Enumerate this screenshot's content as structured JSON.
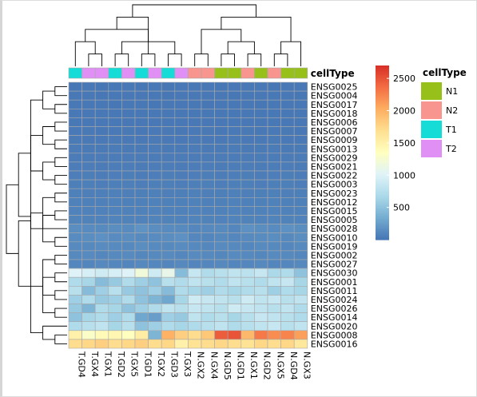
{
  "chart_data": {
    "type": "heatmap",
    "title": "",
    "annotation_title": "cellType",
    "columns": [
      "T.GD4",
      "T.GX4",
      "T.GX1",
      "T.GD2",
      "T.GX5",
      "T.GD1",
      "T.GX2",
      "T.GD3",
      "T.GX3",
      "N.GX2",
      "N.GX4",
      "N.GD5",
      "N.GD1",
      "N.GX1",
      "N.GD2",
      "N.GX5",
      "N.GD4",
      "N.GX3"
    ],
    "column_groups": [
      "T1",
      "T2",
      "T2",
      "T1",
      "T2",
      "T1",
      "T2",
      "T1",
      "T2",
      "N2",
      "N2",
      "N1",
      "N1",
      "N2",
      "N1",
      "N2",
      "N1",
      "N1"
    ],
    "rows": [
      "ENSG0025",
      "ENSG0004",
      "ENSG0017",
      "ENSG0018",
      "ENSG0006",
      "ENSG0007",
      "ENSG0009",
      "ENSG0013",
      "ENSG0029",
      "ENSG0021",
      "ENSG0022",
      "ENSG0003",
      "ENSG0023",
      "ENSG0012",
      "ENSG0015",
      "ENSG0005",
      "ENSG0028",
      "ENSG0010",
      "ENSG0019",
      "ENSG0002",
      "ENSG0027",
      "ENSG0030",
      "ENSG0001",
      "ENSG0011",
      "ENSG0024",
      "ENSG0026",
      "ENSG0014",
      "ENSG0020",
      "ENSG0008",
      "ENSG0016"
    ],
    "values": [
      [
        15,
        20,
        12,
        18,
        25,
        15,
        20,
        12,
        18,
        22,
        20,
        15,
        18,
        20,
        25,
        15,
        18,
        20
      ],
      [
        18,
        22,
        15,
        20,
        18,
        20,
        22,
        15,
        20,
        18,
        22,
        20,
        15,
        22,
        20,
        18,
        20,
        15
      ],
      [
        20,
        18,
        22,
        15,
        20,
        18,
        15,
        22,
        18,
        20,
        15,
        22,
        20,
        18,
        15,
        22,
        18,
        20
      ],
      [
        22,
        25,
        20,
        22,
        18,
        22,
        25,
        20,
        22,
        25,
        20,
        18,
        22,
        25,
        20,
        18,
        22,
        25
      ],
      [
        25,
        22,
        18,
        25,
        22,
        20,
        18,
        25,
        22,
        20,
        25,
        22,
        18,
        20,
        22,
        25,
        20,
        22
      ],
      [
        30,
        28,
        25,
        30,
        28,
        25,
        30,
        28,
        25,
        30,
        28,
        25,
        30,
        28,
        25,
        30,
        28,
        25
      ],
      [
        35,
        32,
        30,
        35,
        32,
        30,
        35,
        32,
        30,
        35,
        32,
        30,
        35,
        32,
        30,
        35,
        32,
        30
      ],
      [
        40,
        38,
        35,
        40,
        38,
        35,
        40,
        38,
        35,
        40,
        38,
        35,
        40,
        38,
        35,
        40,
        38,
        35
      ],
      [
        45,
        42,
        40,
        45,
        42,
        40,
        45,
        42,
        40,
        45,
        42,
        40,
        45,
        42,
        40,
        45,
        42,
        40
      ],
      [
        50,
        48,
        45,
        50,
        48,
        45,
        50,
        48,
        45,
        50,
        48,
        45,
        50,
        48,
        45,
        50,
        48,
        45
      ],
      [
        55,
        52,
        50,
        55,
        52,
        50,
        55,
        52,
        50,
        55,
        52,
        50,
        55,
        52,
        50,
        55,
        52,
        50
      ],
      [
        60,
        58,
        55,
        60,
        58,
        55,
        60,
        58,
        55,
        60,
        58,
        55,
        60,
        58,
        55,
        60,
        58,
        55
      ],
      [
        65,
        62,
        60,
        65,
        62,
        60,
        65,
        62,
        60,
        65,
        62,
        60,
        65,
        62,
        60,
        65,
        62,
        60
      ],
      [
        70,
        68,
        65,
        70,
        68,
        65,
        70,
        68,
        65,
        70,
        68,
        65,
        70,
        68,
        65,
        70,
        68,
        65
      ],
      [
        80,
        75,
        70,
        80,
        75,
        70,
        80,
        75,
        70,
        80,
        75,
        70,
        80,
        75,
        70,
        80,
        75,
        70
      ],
      [
        90,
        85,
        80,
        90,
        85,
        80,
        90,
        85,
        80,
        90,
        85,
        80,
        90,
        85,
        80,
        90,
        85,
        80
      ],
      [
        150,
        140,
        130,
        150,
        140,
        180,
        150,
        140,
        130,
        110,
        120,
        130,
        110,
        170,
        150,
        140,
        170,
        150
      ],
      [
        140,
        150,
        170,
        140,
        150,
        130,
        140,
        150,
        170,
        110,
        100,
        120,
        110,
        130,
        140,
        150,
        120,
        150
      ],
      [
        130,
        120,
        140,
        130,
        120,
        150,
        130,
        120,
        140,
        120,
        110,
        130,
        120,
        110,
        130,
        120,
        110,
        130
      ],
      [
        120,
        130,
        110,
        120,
        130,
        110,
        120,
        130,
        110,
        130,
        120,
        110,
        130,
        120,
        110,
        130,
        120,
        110
      ],
      [
        110,
        100,
        120,
        110,
        100,
        120,
        110,
        100,
        120,
        100,
        110,
        120,
        100,
        110,
        120,
        100,
        110,
        120
      ],
      [
        1000,
        950,
        900,
        950,
        1000,
        1200,
        900,
        1100,
        450,
        850,
        700,
        750,
        800,
        780,
        850,
        680,
        700,
        500
      ],
      [
        700,
        650,
        450,
        550,
        700,
        600,
        500,
        750,
        700,
        800,
        750,
        700,
        800,
        750,
        700,
        800,
        850,
        650
      ],
      [
        750,
        450,
        600,
        750,
        550,
        500,
        600,
        450,
        700,
        650,
        600,
        700,
        650,
        700,
        750,
        600,
        700,
        650
      ],
      [
        600,
        700,
        550,
        600,
        700,
        500,
        400,
        300,
        650,
        900,
        850,
        800,
        750,
        900,
        800,
        850,
        750,
        800
      ],
      [
        550,
        400,
        700,
        650,
        500,
        600,
        700,
        800,
        750,
        850,
        800,
        750,
        900,
        850,
        800,
        750,
        800,
        700
      ],
      [
        500,
        650,
        700,
        600,
        700,
        300,
        250,
        600,
        550,
        800,
        700,
        750,
        650,
        750,
        850,
        800,
        750,
        700
      ],
      [
        700,
        750,
        800,
        650,
        750,
        500,
        600,
        700,
        650,
        700,
        750,
        800,
        700,
        750,
        800,
        850,
        750,
        800
      ],
      [
        1500,
        1300,
        1400,
        1450,
        1350,
        1550,
        400,
        2000,
        1800,
        1700,
        1850,
        2450,
        2500,
        1950,
        2300,
        2200,
        2250,
        2100
      ],
      [
        1700,
        1750,
        1800,
        1700,
        1750,
        1800,
        1700,
        1750,
        1500,
        1650,
        1700,
        1750,
        1700,
        1650,
        1750,
        1700,
        1750,
        1600
      ]
    ],
    "color_scale": {
      "min": 0,
      "max": 2700,
      "ticks": [
        500,
        1000,
        1500,
        2000,
        2500
      ],
      "stops": [
        "#4575b4",
        "#74add1",
        "#abd9e9",
        "#e0f3f8",
        "#ffffbf",
        "#fee090",
        "#fdae61",
        "#f46d43",
        "#d73027"
      ]
    },
    "group_legend": [
      {
        "label": "N1",
        "color": "#97c11a"
      },
      {
        "label": "N2",
        "color": "#f7958e"
      },
      {
        "label": "T1",
        "color": "#16dcd8"
      },
      {
        "label": "T2",
        "color": "#e090f5"
      }
    ],
    "row_tree": [
      [
        28,
        29
      ],
      [
        0,
        1
      ],
      [
        2,
        3
      ],
      [
        4,
        5
      ],
      [
        6,
        7
      ],
      [
        8,
        9
      ],
      [
        10,
        11
      ],
      [
        12,
        13
      ],
      [
        14,
        15
      ],
      [
        17,
        18
      ],
      [
        19,
        20
      ],
      [
        21,
        22
      ],
      [
        23,
        24
      ],
      [
        25,
        26
      ],
      [
        30,
        27
      ],
      [
        31,
        32
      ],
      [
        33,
        34
      ],
      [
        35,
        36
      ],
      [
        37,
        16
      ],
      [
        38,
        39
      ],
      [
        40,
        43
      ],
      [
        41,
        42
      ],
      [
        44,
        45
      ],
      [
        46,
        47
      ],
      [
        48,
        49
      ],
      [
        50,
        51
      ],
      [
        52,
        53
      ],
      [
        54,
        55
      ],
      [
        56,
        57
      ]
    ],
    "col_tree": [
      [
        1,
        2
      ],
      [
        3,
        4
      ],
      [
        0,
        18
      ],
      [
        5,
        6
      ],
      [
        7,
        8
      ],
      [
        20,
        21
      ],
      [
        19,
        22
      ],
      [
        23,
        24
      ],
      [
        9,
        10
      ],
      [
        11,
        12
      ],
      [
        13,
        14
      ],
      [
        15,
        16
      ],
      [
        27,
        28
      ],
      [
        29,
        17
      ],
      [
        26,
        30
      ],
      [
        31,
        32
      ],
      [
        25,
        33
      ]
    ]
  }
}
